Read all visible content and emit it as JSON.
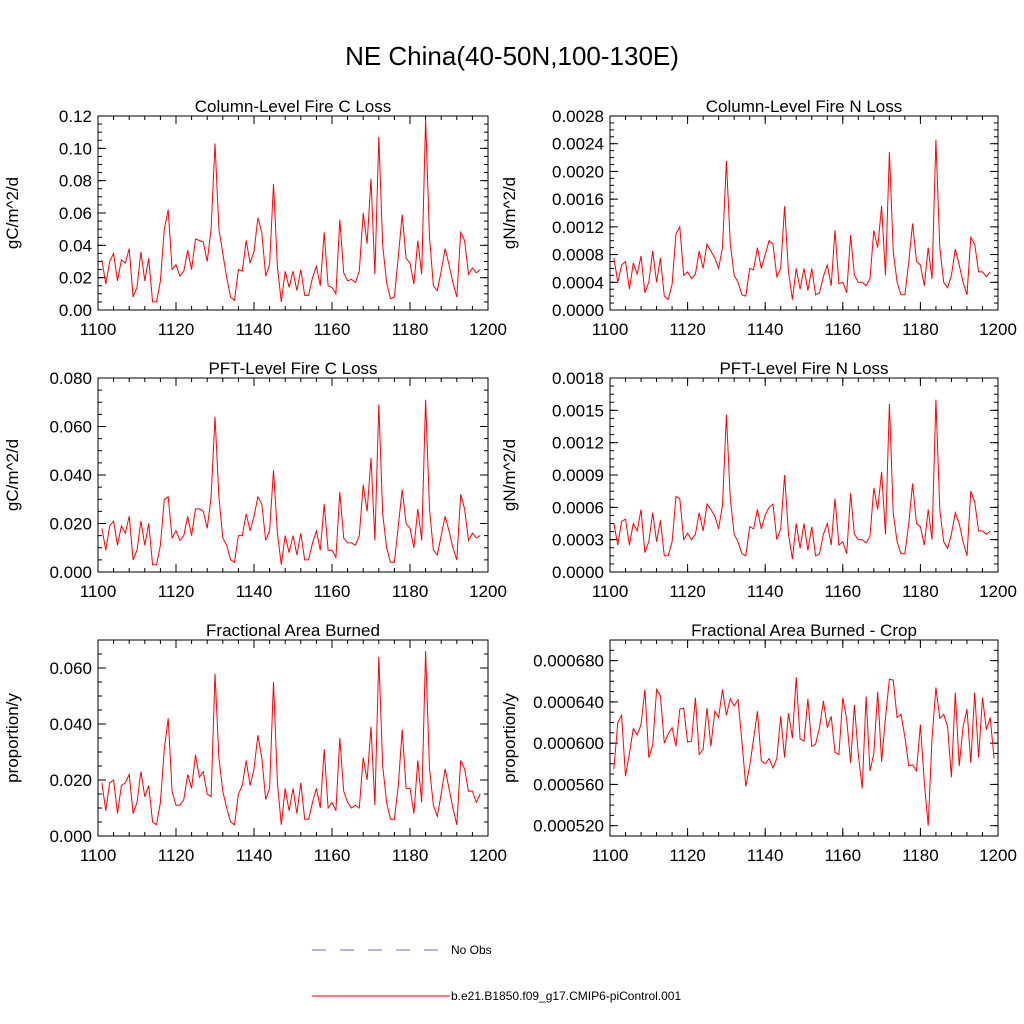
{
  "figure": {
    "title": "NE China(40-50N,100-130E)"
  },
  "legend": {
    "obs_label": "No Obs",
    "model_label": "b.e21.B1850.f09_g17.CMIP6-piControl.001",
    "obs_color": "#6a6ad0",
    "model_color": "#ff0000"
  },
  "chart_data": [
    {
      "type": "line",
      "title": "Column-Level Fire C Loss",
      "xlabel": "",
      "ylabel": "gC/m^2/d",
      "xlim": [
        1100,
        1200
      ],
      "ylim": [
        0,
        0.12
      ],
      "xticks": [
        1100,
        1120,
        1140,
        1160,
        1180,
        1200
      ],
      "xtick_labels": [
        "1100",
        "1120",
        "1140",
        "1160",
        "1180",
        "1200"
      ],
      "yticks": [
        0,
        0.02,
        0.04,
        0.06,
        0.08,
        0.1,
        0.12
      ],
      "ytick_labels": [
        "0.00",
        "0.02",
        "0.04",
        "0.06",
        "0.08",
        "0.10",
        "0.12"
      ],
      "x_start": 1101,
      "series": [
        {
          "name": "b.e21.B1850.f09_g17.CMIP6-piControl.001",
          "values": [
            0.031,
            0.016,
            0.03,
            0.035,
            0.018,
            0.031,
            0.029,
            0.038,
            0.008,
            0.014,
            0.036,
            0.018,
            0.032,
            0.005,
            0.005,
            0.018,
            0.05,
            0.062,
            0.025,
            0.028,
            0.021,
            0.024,
            0.037,
            0.025,
            0.044,
            0.043,
            0.042,
            0.03,
            0.05,
            0.103,
            0.05,
            0.035,
            0.02,
            0.008,
            0.006,
            0.025,
            0.024,
            0.043,
            0.029,
            0.036,
            0.057,
            0.048,
            0.021,
            0.028,
            0.078,
            0.027,
            0.005,
            0.024,
            0.014,
            0.024,
            0.012,
            0.025,
            0.009,
            0.009,
            0.02,
            0.027,
            0.015,
            0.048,
            0.015,
            0.014,
            0.01,
            0.056,
            0.023,
            0.018,
            0.019,
            0.017,
            0.024,
            0.06,
            0.041,
            0.081,
            0.022,
            0.107,
            0.04,
            0.017,
            0.007,
            0.008,
            0.033,
            0.059,
            0.032,
            0.029,
            0.016,
            0.043,
            0.022,
            0.118,
            0.045,
            0.015,
            0.012,
            0.024,
            0.038,
            0.028,
            0.017,
            0.008,
            0.048,
            0.043,
            0.022,
            0.026,
            0.023,
            0.025
          ]
        }
      ]
    },
    {
      "type": "line",
      "title": "Column-Level Fire N Loss",
      "xlabel": "",
      "ylabel": "gN/m^2/d",
      "xlim": [
        1100,
        1200
      ],
      "ylim": [
        0,
        0.0028
      ],
      "xticks": [
        1100,
        1120,
        1140,
        1160,
        1180,
        1200
      ],
      "xtick_labels": [
        "1100",
        "1120",
        "1140",
        "1160",
        "1180",
        "1200"
      ],
      "yticks": [
        0,
        0.0004,
        0.0008,
        0.0012,
        0.0016,
        0.002,
        0.0024,
        0.0028
      ],
      "ytick_labels": [
        "0.0000",
        "0.0004",
        "0.0008",
        "0.0012",
        "0.0016",
        "0.0020",
        "0.0024",
        "0.0028"
      ],
      "x_start": 1101,
      "series": [
        {
          "name": "b.e21.B1850.f09_g17.CMIP6-piControl.001",
          "values": [
            0.00075,
            0.0004,
            0.00065,
            0.0007,
            0.0003,
            0.00068,
            0.00052,
            0.00078,
            0.00025,
            0.0004,
            0.00085,
            0.0004,
            0.00075,
            0.0002,
            0.00015,
            0.00037,
            0.0011,
            0.0012,
            0.0005,
            0.00055,
            0.00045,
            0.00052,
            0.00085,
            0.0006,
            0.00095,
            0.00085,
            0.00075,
            0.0006,
            0.0009,
            0.00215,
            0.00095,
            0.0005,
            0.0004,
            0.00022,
            0.0002,
            0.0006,
            0.00058,
            0.0009,
            0.0006,
            0.0008,
            0.001,
            0.00095,
            0.00048,
            0.0006,
            0.0015,
            0.00055,
            0.00015,
            0.0006,
            0.0003,
            0.0006,
            0.00028,
            0.0006,
            0.00022,
            0.00025,
            0.00048,
            0.00065,
            0.00035,
            0.00115,
            0.00038,
            0.0004,
            0.00025,
            0.00108,
            0.0005,
            0.0004,
            0.0004,
            0.00035,
            0.00045,
            0.00115,
            0.0009,
            0.0015,
            0.0005,
            0.00228,
            0.00085,
            0.0004,
            0.00022,
            0.00022,
            0.0007,
            0.00125,
            0.0007,
            0.00065,
            0.00035,
            0.0009,
            0.00045,
            0.00246,
            0.0009,
            0.0004,
            0.00032,
            0.0005,
            0.00088,
            0.00065,
            0.0004,
            0.00022,
            0.00105,
            0.00095,
            0.00055,
            0.00055,
            0.00048,
            0.00055
          ]
        }
      ]
    },
    {
      "type": "line",
      "title": "PFT-Level Fire C Loss",
      "xlabel": "",
      "ylabel": "gC/m^2/d",
      "xlim": [
        1100,
        1200
      ],
      "ylim": [
        0,
        0.08
      ],
      "xticks": [
        1100,
        1120,
        1140,
        1160,
        1180,
        1200
      ],
      "xtick_labels": [
        "1100",
        "1120",
        "1140",
        "1160",
        "1180",
        "1200"
      ],
      "yticks": [
        0,
        0.02,
        0.04,
        0.06,
        0.08
      ],
      "ytick_labels": [
        "0.000",
        "0.020",
        "0.040",
        "0.060",
        "0.080"
      ],
      "x_start": 1101,
      "series": [
        {
          "name": "b.e21.B1850.f09_g17.CMIP6-piControl.001",
          "values": [
            0.018,
            0.009,
            0.019,
            0.021,
            0.011,
            0.019,
            0.016,
            0.023,
            0.005,
            0.009,
            0.021,
            0.011,
            0.02,
            0.003,
            0.003,
            0.011,
            0.03,
            0.031,
            0.014,
            0.017,
            0.013,
            0.015,
            0.023,
            0.015,
            0.026,
            0.026,
            0.025,
            0.018,
            0.031,
            0.064,
            0.031,
            0.014,
            0.011,
            0.005,
            0.004,
            0.015,
            0.015,
            0.024,
            0.017,
            0.023,
            0.031,
            0.028,
            0.013,
            0.017,
            0.042,
            0.016,
            0.003,
            0.015,
            0.008,
            0.015,
            0.007,
            0.016,
            0.005,
            0.005,
            0.012,
            0.017,
            0.009,
            0.028,
            0.009,
            0.009,
            0.006,
            0.033,
            0.014,
            0.012,
            0.012,
            0.011,
            0.015,
            0.036,
            0.025,
            0.047,
            0.013,
            0.069,
            0.024,
            0.01,
            0.004,
            0.004,
            0.019,
            0.034,
            0.02,
            0.018,
            0.01,
            0.026,
            0.013,
            0.071,
            0.026,
            0.009,
            0.007,
            0.015,
            0.023,
            0.017,
            0.01,
            0.005,
            0.032,
            0.026,
            0.013,
            0.016,
            0.014,
            0.015
          ]
        }
      ]
    },
    {
      "type": "line",
      "title": "PFT-Level Fire N Loss",
      "xlabel": "",
      "ylabel": "gN/m^2/d",
      "xlim": [
        1100,
        1200
      ],
      "ylim": [
        0,
        0.0018
      ],
      "xticks": [
        1100,
        1120,
        1140,
        1160,
        1180,
        1200
      ],
      "xtick_labels": [
        "1100",
        "1120",
        "1140",
        "1160",
        "1180",
        "1200"
      ],
      "yticks": [
        0,
        0.0003,
        0.0006,
        0.0009,
        0.0012,
        0.0015,
        0.0018
      ],
      "ytick_labels": [
        "0.0000",
        "0.0003",
        "0.0006",
        "0.0009",
        "0.0012",
        "0.0015",
        "0.0018"
      ],
      "x_start": 1101,
      "series": [
        {
          "name": "b.e21.B1850.f09_g17.CMIP6-piControl.001",
          "values": [
            0.00045,
            0.00025,
            0.00047,
            0.00049,
            0.00025,
            0.00045,
            0.00038,
            0.00058,
            0.00018,
            0.00028,
            0.00055,
            0.00028,
            0.00048,
            0.00015,
            0.00015,
            0.00028,
            0.0007,
            0.00068,
            0.0003,
            0.00036,
            0.0003,
            0.00035,
            0.00055,
            0.00038,
            0.00063,
            0.00058,
            0.00052,
            0.0004,
            0.00062,
            0.00146,
            0.00068,
            0.00035,
            0.00028,
            0.00017,
            0.00015,
            0.00042,
            0.0004,
            0.00058,
            0.0004,
            0.00053,
            0.0006,
            0.00063,
            0.0003,
            0.0004,
            0.0009,
            0.00035,
            0.00012,
            0.00045,
            0.00022,
            0.00045,
            0.0002,
            0.00042,
            0.00015,
            0.00017,
            0.00035,
            0.00045,
            0.00025,
            0.00068,
            0.00025,
            0.00028,
            0.00017,
            0.00073,
            0.00035,
            0.0003,
            0.0003,
            0.00027,
            0.00033,
            0.00078,
            0.00058,
            0.00093,
            0.00035,
            0.00156,
            0.00055,
            0.00028,
            0.00017,
            0.00017,
            0.00045,
            0.00082,
            0.00045,
            0.00042,
            0.00025,
            0.00058,
            0.0003,
            0.0016,
            0.00058,
            0.00028,
            0.00022,
            0.00035,
            0.00055,
            0.00045,
            0.00028,
            0.00015,
            0.00075,
            0.00065,
            0.00038,
            0.00038,
            0.00035,
            0.00038
          ]
        }
      ]
    },
    {
      "type": "line",
      "title": "Fractional Area Burned",
      "xlabel": "",
      "ylabel": "proportion/y",
      "xlim": [
        1100,
        1200
      ],
      "ylim": [
        0,
        0.07
      ],
      "xticks": [
        1100,
        1120,
        1140,
        1160,
        1180,
        1200
      ],
      "xtick_labels": [
        "1100",
        "1120",
        "1140",
        "1160",
        "1180",
        "1200"
      ],
      "yticks": [
        0,
        0.02,
        0.04,
        0.06
      ],
      "ytick_labels": [
        "0.000",
        "0.020",
        "0.040",
        "0.060"
      ],
      "x_start": 1101,
      "series": [
        {
          "name": "b.e21.B1850.f09_g17.CMIP6-piControl.001",
          "values": [
            0.019,
            0.009,
            0.019,
            0.02,
            0.008,
            0.018,
            0.019,
            0.022,
            0.008,
            0.012,
            0.023,
            0.014,
            0.018,
            0.005,
            0.004,
            0.012,
            0.031,
            0.042,
            0.016,
            0.011,
            0.011,
            0.013,
            0.022,
            0.017,
            0.029,
            0.021,
            0.023,
            0.015,
            0.014,
            0.058,
            0.028,
            0.016,
            0.01,
            0.005,
            0.004,
            0.015,
            0.018,
            0.027,
            0.018,
            0.024,
            0.036,
            0.028,
            0.013,
            0.017,
            0.055,
            0.019,
            0.004,
            0.017,
            0.009,
            0.017,
            0.008,
            0.019,
            0.006,
            0.006,
            0.012,
            0.017,
            0.01,
            0.031,
            0.01,
            0.012,
            0.009,
            0.035,
            0.016,
            0.012,
            0.01,
            0.011,
            0.01,
            0.028,
            0.02,
            0.039,
            0.011,
            0.064,
            0.025,
            0.012,
            0.006,
            0.006,
            0.018,
            0.038,
            0.017,
            0.017,
            0.008,
            0.027,
            0.012,
            0.066,
            0.024,
            0.011,
            0.007,
            0.015,
            0.024,
            0.017,
            0.01,
            0.004,
            0.027,
            0.024,
            0.016,
            0.016,
            0.012,
            0.015
          ]
        }
      ]
    },
    {
      "type": "line",
      "title": "Fractional Area Burned - Crop",
      "xlabel": "",
      "ylabel": "proportion/y",
      "xlim": [
        1100,
        1200
      ],
      "ylim": [
        0.00051,
        0.0007
      ],
      "xticks": [
        1100,
        1120,
        1140,
        1160,
        1180,
        1200
      ],
      "xtick_labels": [
        "1100",
        "1120",
        "1140",
        "1160",
        "1180",
        "1200"
      ],
      "yticks": [
        0.00052,
        0.00056,
        0.0006,
        0.00064,
        0.00068
      ],
      "ytick_labels": [
        "0.000520",
        "0.000560",
        "0.000600",
        "0.000640",
        "0.000680"
      ],
      "x_start": 1101,
      "series": [
        {
          "name": "b.e21.B1850.f09_g17.CMIP6-piControl.001",
          "values": [
            0.000575,
            0.00062,
            0.000627,
            0.000568,
            0.00059,
            0.000614,
            0.000608,
            0.000618,
            0.000652,
            0.000586,
            0.000598,
            0.000652,
            0.000646,
            0.0006,
            0.000609,
            0.000615,
            0.000597,
            0.000633,
            0.000634,
            0.000601,
            0.000602,
            0.000644,
            0.000589,
            0.000594,
            0.000634,
            0.000597,
            0.000631,
            0.000625,
            0.000652,
            0.000627,
            0.000643,
            0.000636,
            0.000642,
            0.000602,
            0.000558,
            0.000578,
            0.000604,
            0.000631,
            0.000583,
            0.00058,
            0.000585,
            0.000576,
            0.000585,
            0.000626,
            0.000586,
            0.000629,
            0.000605,
            0.000664,
            0.000604,
            0.000602,
            0.000643,
            0.000597,
            0.000599,
            0.000615,
            0.000641,
            0.000615,
            0.000626,
            0.000591,
            0.000589,
            0.000644,
            0.000623,
            0.000581,
            0.000637,
            0.000589,
            0.000556,
            0.000645,
            0.000573,
            0.00059,
            0.00065,
            0.000582,
            0.000625,
            0.000662,
            0.000661,
            0.000625,
            0.000628,
            0.000606,
            0.000578,
            0.000579,
            0.000573,
            0.000618,
            0.000562,
            0.00052,
            0.000604,
            0.000654,
            0.000624,
            0.000628,
            0.000616,
            0.000567,
            0.000649,
            0.000578,
            0.000616,
            0.000633,
            0.000581,
            0.000649,
            0.000586,
            0.000644,
            0.000613,
            0.000625,
            0.000585
          ]
        }
      ]
    }
  ]
}
